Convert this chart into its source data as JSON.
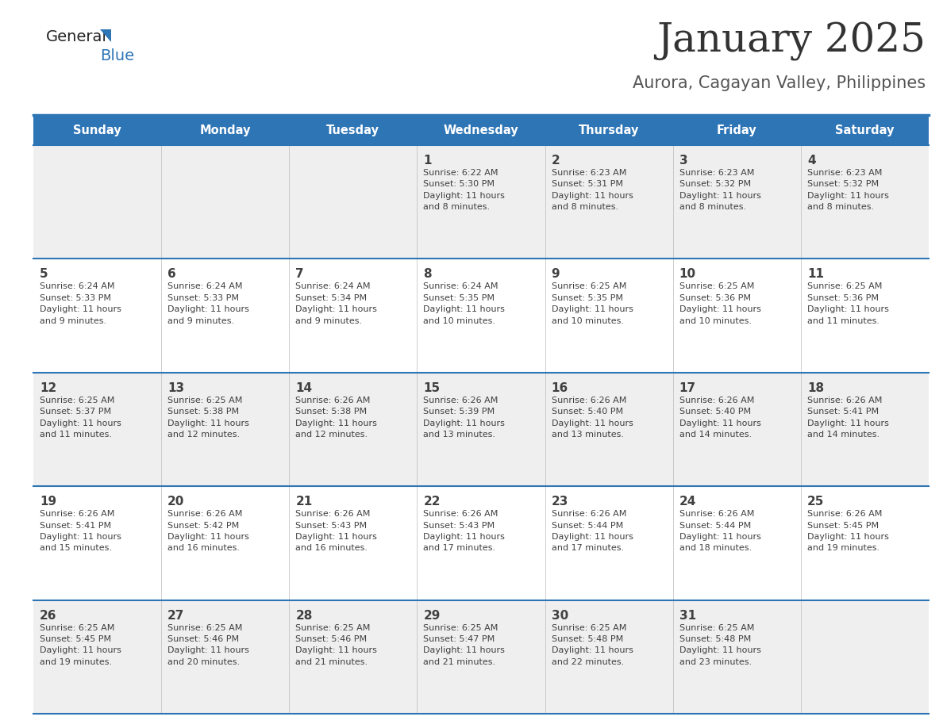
{
  "title": "January 2025",
  "subtitle": "Aurora, Cagayan Valley, Philippines",
  "days_of_week": [
    "Sunday",
    "Monday",
    "Tuesday",
    "Wednesday",
    "Thursday",
    "Friday",
    "Saturday"
  ],
  "header_bg": "#2E75B6",
  "header_text_color": "#FFFFFF",
  "cell_bg_odd": "#EFEFEF",
  "cell_bg_even": "#FFFFFF",
  "border_color": "#2E75B6",
  "text_color": "#404040",
  "title_color": "#333333",
  "subtitle_color": "#555555",
  "calendar": [
    [
      {
        "day": "",
        "info": ""
      },
      {
        "day": "",
        "info": ""
      },
      {
        "day": "",
        "info": ""
      },
      {
        "day": "1",
        "info": "Sunrise: 6:22 AM\nSunset: 5:30 PM\nDaylight: 11 hours\nand 8 minutes."
      },
      {
        "day": "2",
        "info": "Sunrise: 6:23 AM\nSunset: 5:31 PM\nDaylight: 11 hours\nand 8 minutes."
      },
      {
        "day": "3",
        "info": "Sunrise: 6:23 AM\nSunset: 5:32 PM\nDaylight: 11 hours\nand 8 minutes."
      },
      {
        "day": "4",
        "info": "Sunrise: 6:23 AM\nSunset: 5:32 PM\nDaylight: 11 hours\nand 8 minutes."
      }
    ],
    [
      {
        "day": "5",
        "info": "Sunrise: 6:24 AM\nSunset: 5:33 PM\nDaylight: 11 hours\nand 9 minutes."
      },
      {
        "day": "6",
        "info": "Sunrise: 6:24 AM\nSunset: 5:33 PM\nDaylight: 11 hours\nand 9 minutes."
      },
      {
        "day": "7",
        "info": "Sunrise: 6:24 AM\nSunset: 5:34 PM\nDaylight: 11 hours\nand 9 minutes."
      },
      {
        "day": "8",
        "info": "Sunrise: 6:24 AM\nSunset: 5:35 PM\nDaylight: 11 hours\nand 10 minutes."
      },
      {
        "day": "9",
        "info": "Sunrise: 6:25 AM\nSunset: 5:35 PM\nDaylight: 11 hours\nand 10 minutes."
      },
      {
        "day": "10",
        "info": "Sunrise: 6:25 AM\nSunset: 5:36 PM\nDaylight: 11 hours\nand 10 minutes."
      },
      {
        "day": "11",
        "info": "Sunrise: 6:25 AM\nSunset: 5:36 PM\nDaylight: 11 hours\nand 11 minutes."
      }
    ],
    [
      {
        "day": "12",
        "info": "Sunrise: 6:25 AM\nSunset: 5:37 PM\nDaylight: 11 hours\nand 11 minutes."
      },
      {
        "day": "13",
        "info": "Sunrise: 6:25 AM\nSunset: 5:38 PM\nDaylight: 11 hours\nand 12 minutes."
      },
      {
        "day": "14",
        "info": "Sunrise: 6:26 AM\nSunset: 5:38 PM\nDaylight: 11 hours\nand 12 minutes."
      },
      {
        "day": "15",
        "info": "Sunrise: 6:26 AM\nSunset: 5:39 PM\nDaylight: 11 hours\nand 13 minutes."
      },
      {
        "day": "16",
        "info": "Sunrise: 6:26 AM\nSunset: 5:40 PM\nDaylight: 11 hours\nand 13 minutes."
      },
      {
        "day": "17",
        "info": "Sunrise: 6:26 AM\nSunset: 5:40 PM\nDaylight: 11 hours\nand 14 minutes."
      },
      {
        "day": "18",
        "info": "Sunrise: 6:26 AM\nSunset: 5:41 PM\nDaylight: 11 hours\nand 14 minutes."
      }
    ],
    [
      {
        "day": "19",
        "info": "Sunrise: 6:26 AM\nSunset: 5:41 PM\nDaylight: 11 hours\nand 15 minutes."
      },
      {
        "day": "20",
        "info": "Sunrise: 6:26 AM\nSunset: 5:42 PM\nDaylight: 11 hours\nand 16 minutes."
      },
      {
        "day": "21",
        "info": "Sunrise: 6:26 AM\nSunset: 5:43 PM\nDaylight: 11 hours\nand 16 minutes."
      },
      {
        "day": "22",
        "info": "Sunrise: 6:26 AM\nSunset: 5:43 PM\nDaylight: 11 hours\nand 17 minutes."
      },
      {
        "day": "23",
        "info": "Sunrise: 6:26 AM\nSunset: 5:44 PM\nDaylight: 11 hours\nand 17 minutes."
      },
      {
        "day": "24",
        "info": "Sunrise: 6:26 AM\nSunset: 5:44 PM\nDaylight: 11 hours\nand 18 minutes."
      },
      {
        "day": "25",
        "info": "Sunrise: 6:26 AM\nSunset: 5:45 PM\nDaylight: 11 hours\nand 19 minutes."
      }
    ],
    [
      {
        "day": "26",
        "info": "Sunrise: 6:25 AM\nSunset: 5:45 PM\nDaylight: 11 hours\nand 19 minutes."
      },
      {
        "day": "27",
        "info": "Sunrise: 6:25 AM\nSunset: 5:46 PM\nDaylight: 11 hours\nand 20 minutes."
      },
      {
        "day": "28",
        "info": "Sunrise: 6:25 AM\nSunset: 5:46 PM\nDaylight: 11 hours\nand 21 minutes."
      },
      {
        "day": "29",
        "info": "Sunrise: 6:25 AM\nSunset: 5:47 PM\nDaylight: 11 hours\nand 21 minutes."
      },
      {
        "day": "30",
        "info": "Sunrise: 6:25 AM\nSunset: 5:48 PM\nDaylight: 11 hours\nand 22 minutes."
      },
      {
        "day": "31",
        "info": "Sunrise: 6:25 AM\nSunset: 5:48 PM\nDaylight: 11 hours\nand 23 minutes."
      },
      {
        "day": "",
        "info": ""
      }
    ]
  ],
  "logo_general_color": "#222222",
  "logo_blue_color": "#2E75B6"
}
